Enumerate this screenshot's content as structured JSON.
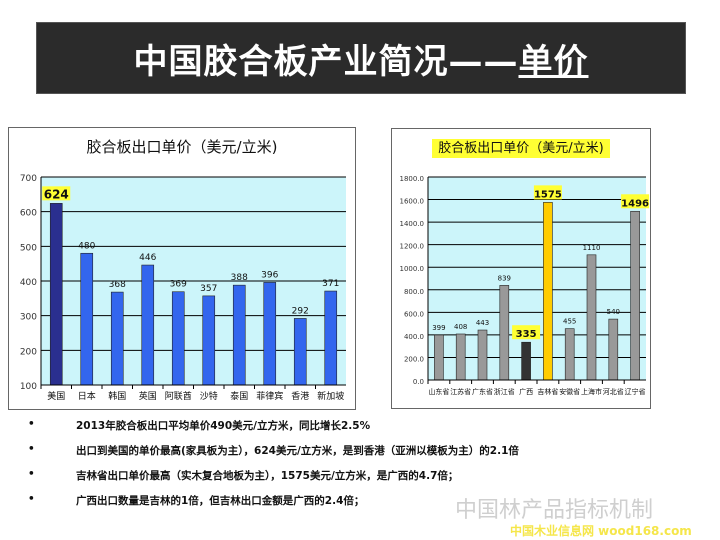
{
  "slide_title": "中国胶合板产业简况——",
  "slide_title_em": "单价",
  "chart_data": [
    {
      "type": "bar",
      "title": "胶合板出口单价（美元/立米)",
      "ylim": [
        100,
        700
      ],
      "yticks": [
        "100",
        "200",
        "300",
        "400",
        "500",
        "600",
        "700"
      ],
      "grid": true,
      "categories": [
        "美国",
        "日本",
        "韩国",
        "英国",
        "阿联酋",
        "沙特",
        "泰国",
        "菲律宾",
        "香港",
        "新加坡"
      ],
      "values": [
        624,
        480,
        368,
        446,
        369,
        357,
        388,
        396,
        292,
        371
      ],
      "labels": [
        "624",
        "480",
        "368",
        "446",
        "369",
        "357",
        "388",
        "396",
        "292",
        "371"
      ],
      "colors": {
        "default": "#3366ee",
        "highlight": "#2a2f8f",
        "plot_bg": "#ccf5fa",
        "label_highlight": "#ffff33"
      },
      "highlight": [
        0
      ]
    },
    {
      "type": "bar",
      "title": "胶合板出口单价（美元/立米)",
      "ylim": [
        0,
        1800
      ],
      "yticks": [
        "0.0",
        "200.0",
        "400.0",
        "600.0",
        "800.0",
        "1000.0",
        "1200.0",
        "1400.0",
        "1600.0",
        "1800.0"
      ],
      "grid": true,
      "categories": [
        "山东省",
        "江苏省",
        "广东省",
        "浙江省",
        "广西",
        "吉林省",
        "安徽省",
        "上海市",
        "河北省",
        "辽宁省"
      ],
      "values": [
        399,
        408,
        443,
        839,
        335,
        1575,
        455,
        1110,
        540,
        1496
      ],
      "labels": [
        "399",
        "408",
        "443",
        "839",
        "335",
        "1575",
        "455",
        "1110",
        "540",
        "1496"
      ],
      "colors": {
        "default": "#999999",
        "plot_bg": "#ccf5fa",
        "label_highlight": "#ffff33",
        "bar_overrides": {
          "4": "#333333",
          "5": "#ffcc00"
        }
      },
      "highlight": [
        4,
        5,
        9
      ]
    }
  ],
  "bullets": [
    "2013年胶合板出口平均单价490美元/立方米，同比增长2.5%",
    "出口到美国的单价最高(家具板为主），624美元/立方米，是到香港（亚洲以模板为主）的2.1倍",
    "吉林省出口单价最高（实木复合地板为主），1575美元/立方米，是广西的4.7倍；",
    "广西出口数量是吉林的1倍，但吉林出口金额是广西的2.4倍；"
  ],
  "bullet_symbol": "•",
  "watermark": "中国林产品指标机制",
  "watermark2": "中国木业信息网 wood168.com"
}
